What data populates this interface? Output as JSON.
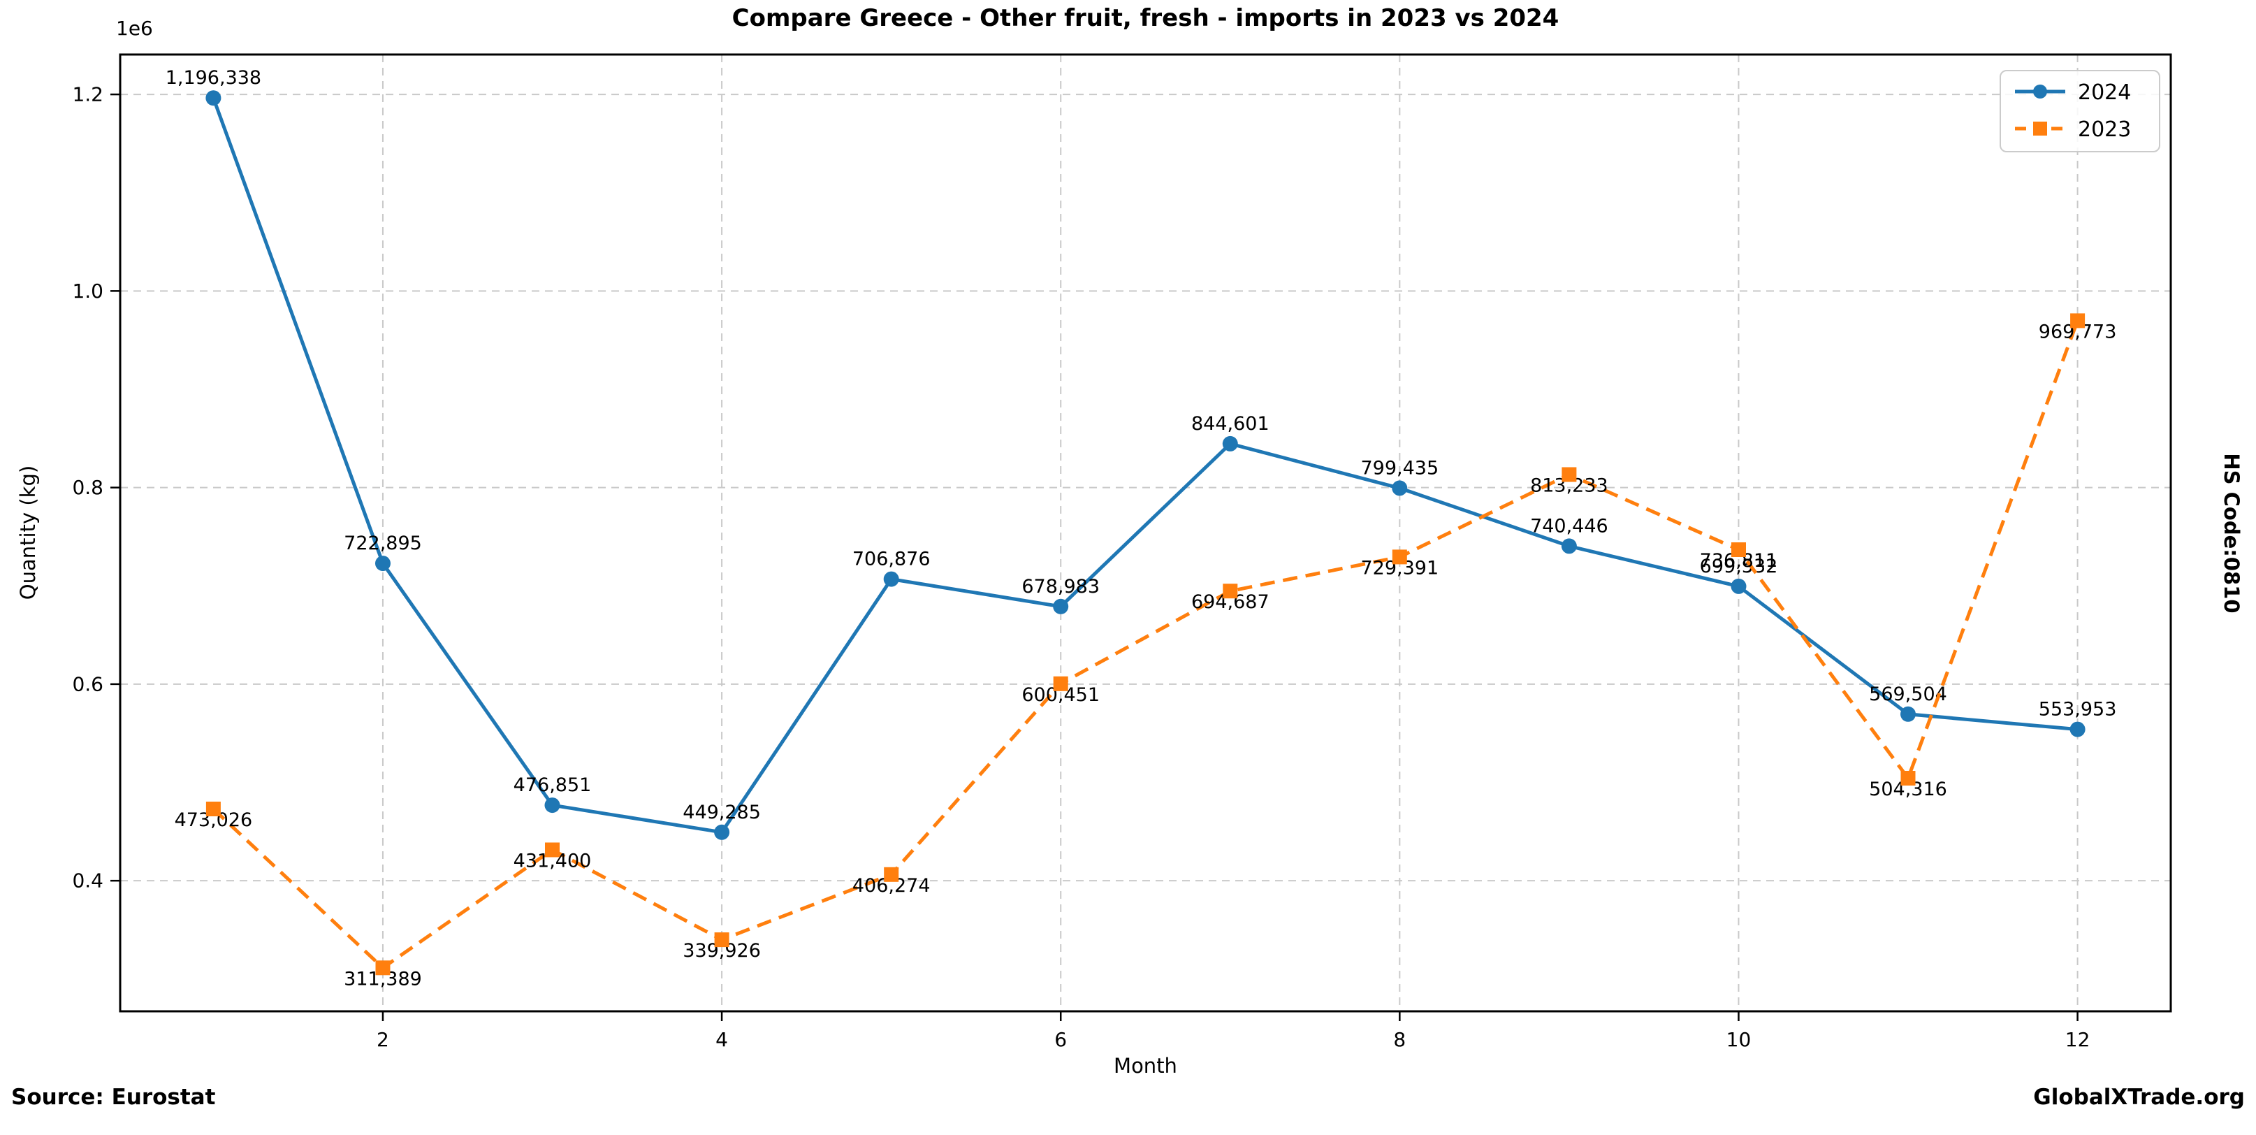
{
  "chart_data": {
    "type": "line",
    "title": "Compare Greece - Other fruit, fresh - imports in 2023 vs 2024",
    "xlabel": "Month",
    "ylabel": "Quantity (kg)",
    "y_offset_label": "1e6",
    "x": [
      1,
      2,
      3,
      4,
      5,
      6,
      7,
      8,
      9,
      10,
      11,
      12
    ],
    "xticks": [
      2,
      4,
      6,
      8,
      10,
      12
    ],
    "yticks": [
      400000,
      600000,
      800000,
      1000000,
      1200000
    ],
    "ytick_labels": [
      "0.4",
      "0.6",
      "0.8",
      "1.0",
      "1.2"
    ],
    "xlim": [
      0.45,
      12.55
    ],
    "ylim": [
      267142,
      1240585
    ],
    "grid": true,
    "legend_position": "upper right",
    "series": [
      {
        "name": "2024",
        "color": "#1f77b4",
        "line_style": "solid",
        "marker": "circle",
        "values": [
          1196338,
          722895,
          476851,
          449285,
          706876,
          678983,
          844601,
          799435,
          740446,
          699532,
          569504,
          553953
        ]
      },
      {
        "name": "2023",
        "color": "#ff7f0e",
        "line_style": "dashed",
        "marker": "square",
        "values": [
          473026,
          311389,
          431400,
          339926,
          406274,
          600451,
          694687,
          729391,
          813233,
          736811,
          504316,
          969773
        ]
      }
    ]
  },
  "footer": {
    "source": "Source: Eurostat",
    "brand": "GlobalXTrade.org"
  },
  "side_label": "HS Code:0810"
}
